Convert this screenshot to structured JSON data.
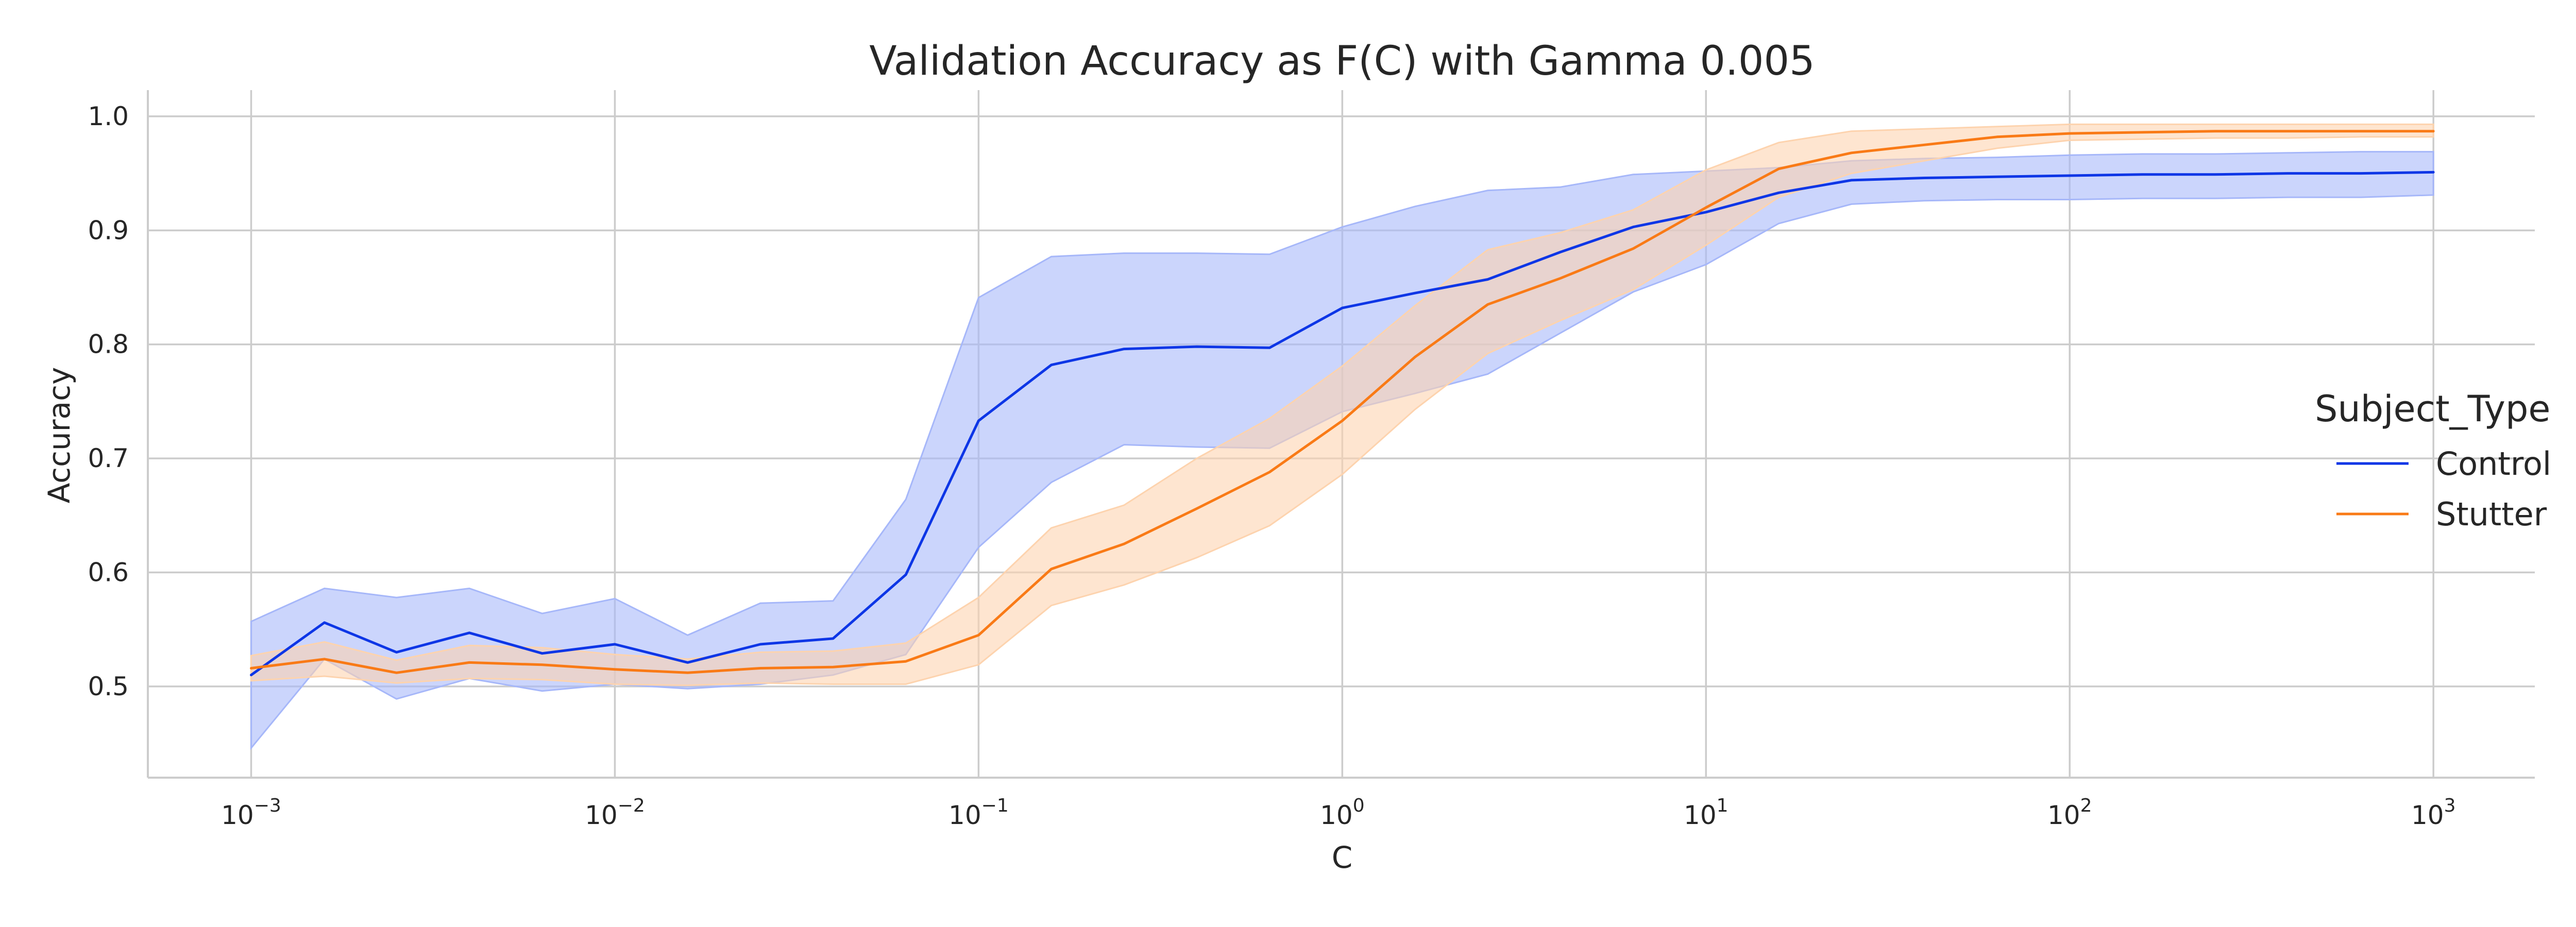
{
  "chart_data": {
    "type": "line",
    "title": "Validation Accuracy as F(C) with Gamma 0.005",
    "xlabel": "C",
    "ylabel": "Accuracy",
    "xscale": "log",
    "xlim": [
      0.00052,
      1900
    ],
    "ylim": [
      0.42,
      1.023
    ],
    "grid": true,
    "x_ticks": [
      {
        "value": 0.001,
        "base": "10",
        "exp": "−3"
      },
      {
        "value": 0.01,
        "base": "10",
        "exp": "−2"
      },
      {
        "value": 0.1,
        "base": "10",
        "exp": "−1"
      },
      {
        "value": 1,
        "base": "10",
        "exp": "0"
      },
      {
        "value": 10,
        "base": "10",
        "exp": "1"
      },
      {
        "value": 100,
        "base": "10",
        "exp": "2"
      },
      {
        "value": 1000,
        "base": "10",
        "exp": "3"
      }
    ],
    "y_ticks": [
      {
        "value": 0.5,
        "label": "0.5"
      },
      {
        "value": 0.6,
        "label": "0.6"
      },
      {
        "value": 0.7,
        "label": "0.7"
      },
      {
        "value": 0.8,
        "label": "0.8"
      },
      {
        "value": 0.9,
        "label": "0.9"
      },
      {
        "value": 1.0,
        "label": "1.0"
      }
    ],
    "x": [
      0.001,
      0.00159,
      0.00251,
      0.00398,
      0.00631,
      0.01,
      0.01585,
      0.02512,
      0.03981,
      0.0631,
      0.1,
      0.1585,
      0.2512,
      0.3981,
      0.631,
      1.0,
      1.585,
      2.512,
      3.981,
      6.31,
      10,
      15.85,
      25.12,
      39.81,
      63.1,
      100,
      158.5,
      251.2,
      398.1,
      631,
      1000
    ],
    "legend": {
      "title": "Subject_Type",
      "position": "center-right"
    },
    "series": [
      {
        "name": "Control",
        "color": "#0d36e6",
        "band_color": "#a6b7f9",
        "values": [
          0.51,
          0.556,
          0.53,
          0.547,
          0.529,
          0.537,
          0.521,
          0.537,
          0.542,
          0.598,
          0.733,
          0.782,
          0.796,
          0.798,
          0.797,
          0.832,
          0.845,
          0.857,
          0.881,
          0.903,
          0.916,
          0.933,
          0.944,
          0.946,
          0.947,
          0.948,
          0.949,
          0.949,
          0.95,
          0.95,
          0.951
        ],
        "lower": [
          0.446,
          0.524,
          0.489,
          0.507,
          0.496,
          0.502,
          0.498,
          0.502,
          0.51,
          0.528,
          0.622,
          0.679,
          0.712,
          0.71,
          0.709,
          0.741,
          0.757,
          0.774,
          0.81,
          0.846,
          0.87,
          0.906,
          0.923,
          0.926,
          0.927,
          0.927,
          0.928,
          0.928,
          0.929,
          0.929,
          0.931
        ],
        "upper": [
          0.557,
          0.586,
          0.578,
          0.586,
          0.564,
          0.577,
          0.545,
          0.573,
          0.575,
          0.664,
          0.841,
          0.877,
          0.88,
          0.88,
          0.879,
          0.903,
          0.921,
          0.935,
          0.938,
          0.949,
          0.952,
          0.955,
          0.961,
          0.963,
          0.964,
          0.966,
          0.967,
          0.967,
          0.968,
          0.969,
          0.969
        ]
      },
      {
        "name": "Stutter",
        "color": "#f97a16",
        "band_color": "#fdd3ae",
        "values": [
          0.516,
          0.524,
          0.512,
          0.521,
          0.519,
          0.515,
          0.512,
          0.516,
          0.517,
          0.522,
          0.545,
          0.603,
          0.625,
          0.656,
          0.688,
          0.733,
          0.789,
          0.835,
          0.858,
          0.884,
          0.92,
          0.954,
          0.968,
          0.975,
          0.982,
          0.985,
          0.986,
          0.987,
          0.987,
          0.987,
          0.987
        ],
        "lower": [
          0.505,
          0.509,
          0.503,
          0.507,
          0.506,
          0.502,
          0.501,
          0.503,
          0.502,
          0.502,
          0.519,
          0.571,
          0.589,
          0.613,
          0.641,
          0.686,
          0.743,
          0.792,
          0.821,
          0.848,
          0.887,
          0.929,
          0.95,
          0.961,
          0.972,
          0.979,
          0.98,
          0.981,
          0.981,
          0.982,
          0.982
        ],
        "upper": [
          0.527,
          0.539,
          0.523,
          0.536,
          0.534,
          0.528,
          0.524,
          0.53,
          0.531,
          0.538,
          0.578,
          0.639,
          0.659,
          0.7,
          0.735,
          0.781,
          0.834,
          0.883,
          0.898,
          0.918,
          0.953,
          0.977,
          0.987,
          0.989,
          0.991,
          0.993,
          0.993,
          0.993,
          0.993,
          0.993,
          0.993
        ]
      }
    ]
  }
}
